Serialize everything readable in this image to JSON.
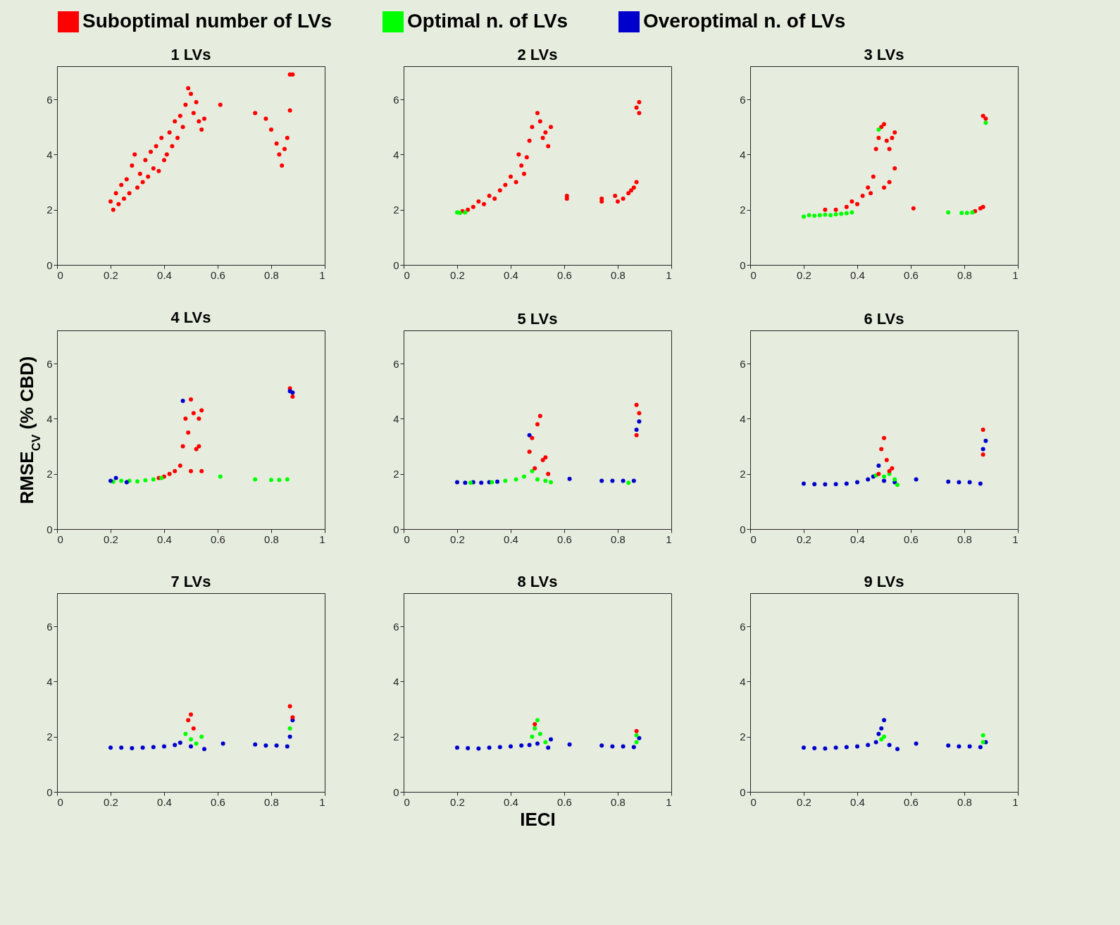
{
  "chart_data": [
    {
      "type": "scatter",
      "title": "1 LVs",
      "legend": "top",
      "marker": "circle",
      "xlim": [
        0,
        1
      ],
      "ylim": [
        0,
        7.2
      ],
      "xticks": [
        0,
        0.2,
        0.4,
        0.6,
        0.8,
        1
      ],
      "yticks": [
        0,
        2,
        4,
        6
      ],
      "series": [
        {
          "name": "Suboptimal number of LVs",
          "color": "#ff0000",
          "x": [
            0.2,
            0.21,
            0.22,
            0.23,
            0.24,
            0.25,
            0.26,
            0.27,
            0.28,
            0.29,
            0.3,
            0.31,
            0.32,
            0.33,
            0.34,
            0.35,
            0.36,
            0.37,
            0.38,
            0.39,
            0.4,
            0.41,
            0.42,
            0.43,
            0.44,
            0.45,
            0.46,
            0.47,
            0.48,
            0.49,
            0.5,
            0.51,
            0.52,
            0.53,
            0.54,
            0.55,
            0.61,
            0.74,
            0.78,
            0.8,
            0.82,
            0.83,
            0.84,
            0.85,
            0.86,
            0.87,
            0.87,
            0.88
          ],
          "values": [
            2.3,
            2.0,
            2.6,
            2.2,
            2.9,
            2.4,
            3.1,
            2.6,
            3.6,
            4.0,
            2.8,
            3.3,
            3.0,
            3.8,
            3.2,
            4.1,
            3.5,
            4.3,
            3.4,
            4.6,
            3.8,
            4.0,
            4.8,
            4.3,
            5.2,
            4.6,
            5.4,
            5.0,
            5.8,
            6.4,
            6.2,
            5.5,
            5.9,
            5.2,
            4.9,
            5.3,
            5.8,
            5.5,
            5.3,
            4.9,
            4.4,
            4.0,
            3.6,
            4.2,
            4.6,
            5.6,
            6.9,
            6.9
          ]
        },
        {
          "name": "Optimal n. of LVs",
          "color": "#00ff00"
        },
        {
          "name": "Overoptimal n. of LVs",
          "color": "#0000cc"
        }
      ]
    },
    {
      "type": "scatter",
      "title": "2 LVs",
      "marker": "circle",
      "xlim": [
        0,
        1
      ],
      "ylim": [
        0,
        7.2
      ],
      "xticks": [
        0,
        0.2,
        0.4,
        0.6,
        0.8,
        1
      ],
      "yticks": [
        0,
        2,
        4,
        6
      ],
      "series": [
        {
          "color": "#ff0000",
          "x": [
            0.22,
            0.24,
            0.26,
            0.28,
            0.3,
            0.32,
            0.34,
            0.36,
            0.38,
            0.4,
            0.42,
            0.43,
            0.44,
            0.45,
            0.46,
            0.47,
            0.48,
            0.5,
            0.51,
            0.52,
            0.53,
            0.54,
            0.55,
            0.61,
            0.61,
            0.74,
            0.74,
            0.79,
            0.8,
            0.82,
            0.84,
            0.85,
            0.86,
            0.87,
            0.87,
            0.88,
            0.88
          ],
          "values": [
            1.95,
            2.0,
            2.1,
            2.3,
            2.2,
            2.5,
            2.4,
            2.7,
            2.9,
            3.2,
            3.0,
            4.0,
            3.6,
            3.3,
            3.9,
            4.5,
            5.0,
            5.5,
            5.2,
            4.6,
            4.8,
            4.3,
            5.0,
            2.5,
            2.4,
            2.4,
            2.3,
            2.5,
            2.3,
            2.4,
            2.6,
            2.7,
            2.8,
            3.0,
            5.7,
            5.9,
            5.5
          ]
        },
        {
          "color": "#00ff00",
          "x": [
            0.2,
            0.21,
            0.23
          ],
          "values": [
            1.9,
            1.88,
            1.9
          ]
        }
      ]
    },
    {
      "type": "scatter",
      "title": "3 LVs",
      "marker": "circle",
      "xlim": [
        0,
        1
      ],
      "ylim": [
        0,
        7.2
      ],
      "xticks": [
        0,
        0.2,
        0.4,
        0.6,
        0.8,
        1
      ],
      "yticks": [
        0,
        2,
        4,
        6
      ],
      "series": [
        {
          "color": "#ff0000",
          "x": [
            0.28,
            0.32,
            0.36,
            0.38,
            0.4,
            0.42,
            0.44,
            0.45,
            0.46,
            0.47,
            0.48,
            0.49,
            0.5,
            0.51,
            0.52,
            0.53,
            0.54,
            0.54,
            0.52,
            0.5,
            0.61,
            0.84,
            0.86,
            0.87,
            0.87,
            0.88
          ],
          "values": [
            2.0,
            2.0,
            2.1,
            2.3,
            2.2,
            2.5,
            2.8,
            2.6,
            3.2,
            4.2,
            4.6,
            5.0,
            5.1,
            4.5,
            4.2,
            4.6,
            4.8,
            3.5,
            3.0,
            2.8,
            2.05,
            1.95,
            2.05,
            2.1,
            5.4,
            5.3
          ]
        },
        {
          "color": "#00ff00",
          "x": [
            0.2,
            0.22,
            0.24,
            0.26,
            0.28,
            0.3,
            0.32,
            0.34,
            0.36,
            0.38,
            0.48,
            0.74,
            0.79,
            0.81,
            0.83,
            0.88
          ],
          "values": [
            1.75,
            1.8,
            1.78,
            1.8,
            1.82,
            1.8,
            1.83,
            1.85,
            1.87,
            1.9,
            4.9,
            1.9,
            1.88,
            1.88,
            1.9,
            5.15
          ]
        }
      ]
    },
    {
      "type": "scatter",
      "title": "4 LVs",
      "ylabel": "RMSE$_{CV}$ (% CBD)",
      "marker": "circle",
      "xlim": [
        0,
        1
      ],
      "ylim": [
        0,
        7.2
      ],
      "xticks": [
        0,
        0.2,
        0.4,
        0.6,
        0.8,
        1
      ],
      "yticks": [
        0,
        2,
        4,
        6
      ],
      "series": [
        {
          "color": "#ff0000",
          "x": [
            0.38,
            0.4,
            0.42,
            0.44,
            0.46,
            0.47,
            0.48,
            0.49,
            0.5,
            0.51,
            0.52,
            0.53,
            0.54,
            0.54,
            0.53,
            0.5,
            0.87,
            0.88
          ],
          "values": [
            1.85,
            1.9,
            2.0,
            2.1,
            2.3,
            3.0,
            4.0,
            3.5,
            4.7,
            4.2,
            2.9,
            4.0,
            4.3,
            2.1,
            3.0,
            2.1,
            5.1,
            4.8
          ]
        },
        {
          "color": "#00ff00",
          "x": [
            0.21,
            0.24,
            0.27,
            0.3,
            0.33,
            0.36,
            0.39,
            0.61,
            0.74,
            0.8,
            0.83,
            0.86
          ],
          "values": [
            1.72,
            1.75,
            1.75,
            1.73,
            1.77,
            1.8,
            1.85,
            1.9,
            1.8,
            1.78,
            1.78,
            1.8
          ]
        },
        {
          "color": "#0000cc",
          "x": [
            0.2,
            0.22,
            0.26,
            0.47,
            0.87,
            0.88
          ],
          "values": [
            1.75,
            1.85,
            1.7,
            4.65,
            5.0,
            4.95
          ]
        }
      ]
    },
    {
      "type": "scatter",
      "title": "5 LVs",
      "marker": "circle",
      "xlim": [
        0,
        1
      ],
      "ylim": [
        0,
        7.2
      ],
      "xticks": [
        0,
        0.2,
        0.4,
        0.6,
        0.8,
        1
      ],
      "yticks": [
        0,
        2,
        4,
        6
      ],
      "series": [
        {
          "color": "#0000cc",
          "x": [
            0.2,
            0.23,
            0.26,
            0.29,
            0.32,
            0.35,
            0.47,
            0.62,
            0.74,
            0.78,
            0.82,
            0.86,
            0.87,
            0.88
          ],
          "values": [
            1.7,
            1.68,
            1.7,
            1.68,
            1.7,
            1.72,
            3.4,
            1.82,
            1.75,
            1.75,
            1.75,
            1.75,
            3.6,
            3.9
          ]
        },
        {
          "color": "#00ff00",
          "x": [
            0.25,
            0.33,
            0.38,
            0.42,
            0.45,
            0.48,
            0.5,
            0.53,
            0.55,
            0.84
          ],
          "values": [
            1.68,
            1.7,
            1.75,
            1.8,
            1.9,
            2.1,
            1.8,
            1.75,
            1.7,
            1.68
          ]
        },
        {
          "color": "#ff0000",
          "x": [
            0.47,
            0.48,
            0.49,
            0.5,
            0.51,
            0.52,
            0.53,
            0.54,
            0.87,
            0.87,
            0.88
          ],
          "values": [
            2.8,
            3.3,
            2.2,
            3.8,
            4.1,
            2.5,
            2.6,
            2.0,
            4.5,
            3.4,
            4.2
          ]
        }
      ]
    },
    {
      "type": "scatter",
      "title": "6 LVs",
      "marker": "circle",
      "xlim": [
        0,
        1
      ],
      "ylim": [
        0,
        7.2
      ],
      "xticks": [
        0,
        0.2,
        0.4,
        0.6,
        0.8,
        1
      ],
      "yticks": [
        0,
        2,
        4,
        6
      ],
      "series": [
        {
          "color": "#0000cc",
          "x": [
            0.2,
            0.24,
            0.28,
            0.32,
            0.36,
            0.4,
            0.44,
            0.46,
            0.48,
            0.5,
            0.54,
            0.62,
            0.74,
            0.78,
            0.82,
            0.86,
            0.87,
            0.88
          ],
          "values": [
            1.65,
            1.63,
            1.62,
            1.63,
            1.65,
            1.7,
            1.8,
            1.9,
            2.3,
            1.75,
            1.7,
            1.8,
            1.72,
            1.7,
            1.7,
            1.65,
            2.9,
            3.2
          ]
        },
        {
          "color": "#00ff00",
          "x": [
            0.47,
            0.5,
            0.52,
            0.54,
            0.55
          ],
          "values": [
            1.95,
            1.9,
            2.0,
            1.8,
            1.6
          ]
        },
        {
          "color": "#ff0000",
          "x": [
            0.48,
            0.49,
            0.5,
            0.51,
            0.52,
            0.53,
            0.87,
            0.87
          ],
          "values": [
            2.0,
            2.9,
            3.3,
            2.5,
            2.1,
            2.2,
            3.6,
            2.7
          ]
        }
      ]
    },
    {
      "type": "scatter",
      "title": "7 LVs",
      "marker": "circle",
      "xlim": [
        0,
        1
      ],
      "ylim": [
        0,
        7.2
      ],
      "xticks": [
        0,
        0.2,
        0.4,
        0.6,
        0.8,
        1
      ],
      "yticks": [
        0,
        2,
        4,
        6
      ],
      "series": [
        {
          "color": "#0000cc",
          "x": [
            0.2,
            0.24,
            0.28,
            0.32,
            0.36,
            0.4,
            0.44,
            0.46,
            0.5,
            0.55,
            0.62,
            0.74,
            0.78,
            0.82,
            0.86,
            0.87,
            0.88
          ],
          "values": [
            1.6,
            1.6,
            1.58,
            1.6,
            1.62,
            1.65,
            1.7,
            1.78,
            1.65,
            1.55,
            1.75,
            1.72,
            1.68,
            1.68,
            1.65,
            2.0,
            2.6
          ]
        },
        {
          "color": "#00ff00",
          "x": [
            0.48,
            0.5,
            0.52,
            0.54,
            0.87
          ],
          "values": [
            2.1,
            1.9,
            1.75,
            2.0,
            2.3
          ]
        },
        {
          "color": "#ff0000",
          "x": [
            0.49,
            0.5,
            0.51,
            0.87,
            0.88
          ],
          "values": [
            2.6,
            2.8,
            2.3,
            3.1,
            2.7
          ]
        }
      ]
    },
    {
      "type": "scatter",
      "title": "8 LVs",
      "xlabel": "IECI",
      "marker": "circle",
      "xlim": [
        0,
        1
      ],
      "ylim": [
        0,
        7.2
      ],
      "xticks": [
        0,
        0.2,
        0.4,
        0.6,
        0.8,
        1
      ],
      "yticks": [
        0,
        2,
        4,
        6
      ],
      "series": [
        {
          "color": "#0000cc",
          "x": [
            0.2,
            0.24,
            0.28,
            0.32,
            0.36,
            0.4,
            0.44,
            0.47,
            0.5,
            0.54,
            0.55,
            0.62,
            0.74,
            0.78,
            0.82,
            0.86,
            0.88
          ],
          "values": [
            1.6,
            1.58,
            1.57,
            1.6,
            1.62,
            1.65,
            1.68,
            1.7,
            1.75,
            1.6,
            1.9,
            1.72,
            1.68,
            1.65,
            1.65,
            1.62,
            1.95
          ]
        },
        {
          "color": "#00ff00",
          "x": [
            0.48,
            0.49,
            0.5,
            0.51,
            0.53,
            0.87,
            0.87
          ],
          "values": [
            2.0,
            2.3,
            2.6,
            2.1,
            1.8,
            2.05,
            1.8
          ]
        },
        {
          "color": "#ff0000",
          "x": [
            0.49,
            0.87
          ],
          "values": [
            2.45,
            2.2
          ]
        }
      ]
    },
    {
      "type": "scatter",
      "title": "9 LVs",
      "marker": "circle",
      "xlim": [
        0,
        1
      ],
      "ylim": [
        0,
        7.2
      ],
      "xticks": [
        0,
        0.2,
        0.4,
        0.6,
        0.8,
        1
      ],
      "yticks": [
        0,
        2,
        4,
        6
      ],
      "series": [
        {
          "color": "#0000cc",
          "x": [
            0.2,
            0.24,
            0.28,
            0.32,
            0.36,
            0.4,
            0.44,
            0.47,
            0.48,
            0.49,
            0.5,
            0.52,
            0.55,
            0.62,
            0.74,
            0.78,
            0.82,
            0.86,
            0.88
          ],
          "values": [
            1.6,
            1.58,
            1.57,
            1.6,
            1.62,
            1.65,
            1.7,
            1.8,
            2.1,
            2.3,
            2.6,
            1.7,
            1.55,
            1.75,
            1.68,
            1.65,
            1.65,
            1.62,
            1.8
          ]
        },
        {
          "color": "#00ff00",
          "x": [
            0.49,
            0.5,
            0.87,
            0.87
          ],
          "values": [
            1.9,
            2.0,
            2.05,
            1.8
          ]
        }
      ]
    }
  ]
}
